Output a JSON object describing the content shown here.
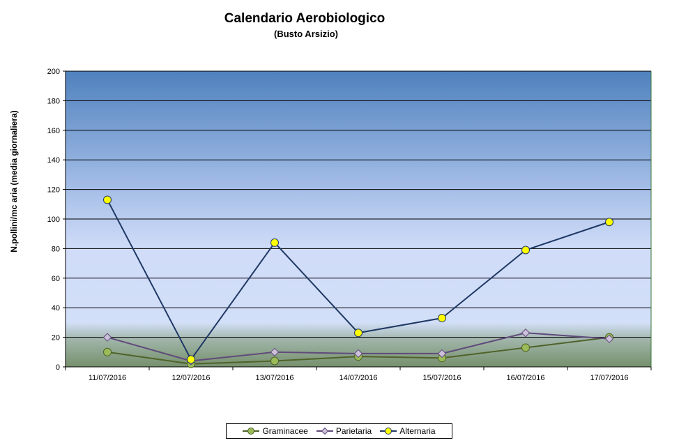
{
  "chart_data": {
    "type": "line",
    "title": "Calendario Aerobiologico",
    "subtitle": "(Busto Arsizio)",
    "ylabel": "N.pollini/mc aria (media giornaliera)",
    "xlabel": "",
    "ylim": [
      0,
      200
    ],
    "yticks": [
      0,
      20,
      40,
      60,
      80,
      100,
      120,
      140,
      160,
      180,
      200
    ],
    "grid": true,
    "legend_position": "bottom",
    "categories": [
      "11/07/2016",
      "12/07/2016",
      "13/07/2016",
      "14/07/2016",
      "15/07/2016",
      "16/07/2016",
      "17/07/2016"
    ],
    "series": [
      {
        "name": "Graminacee",
        "values": [
          10,
          2,
          4,
          7,
          6,
          13,
          20
        ],
        "color": "#4f6228",
        "marker": "circle",
        "marker_color": "#9bbb59"
      },
      {
        "name": "Parietaria",
        "values": [
          20,
          4,
          10,
          9,
          9,
          23,
          19
        ],
        "color": "#604a7b",
        "marker": "diamond",
        "marker_color": "#ccc0da"
      },
      {
        "name": "Alternaria",
        "values": [
          113,
          5,
          84,
          23,
          33,
          79,
          98
        ],
        "color": "#1f3864",
        "marker": "circle",
        "marker_color": "#ffff00"
      }
    ]
  }
}
